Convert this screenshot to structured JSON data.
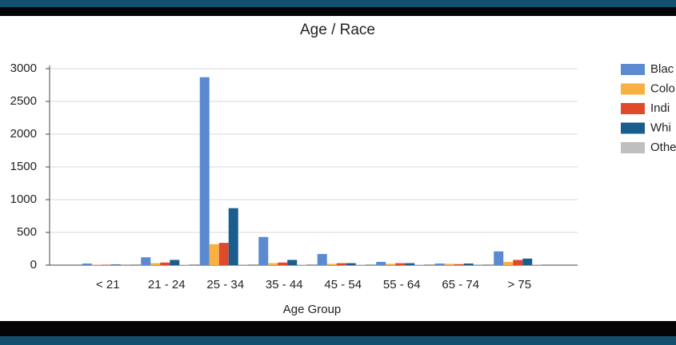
{
  "chart_data": {
    "type": "bar",
    "title": "Age / Race",
    "x_label": "Age Group",
    "categories": [
      "< 21",
      "21 - 24",
      "25 - 34",
      "35 - 44",
      "45 - 54",
      "55 - 64",
      "65 - 74",
      "> 75"
    ],
    "series": [
      {
        "name": "Blac",
        "color": "#5b8ad0",
        "values": [
          25,
          120,
          2870,
          430,
          170,
          50,
          25,
          210
        ]
      },
      {
        "name": "Colo",
        "color": "#f7b041",
        "values": [
          5,
          30,
          320,
          30,
          20,
          20,
          20,
          50
        ]
      },
      {
        "name": "Indi",
        "color": "#df4a2b",
        "values": [
          5,
          40,
          340,
          40,
          30,
          30,
          15,
          80
        ]
      },
      {
        "name": "Whi",
        "color": "#1b5d8c",
        "values": [
          10,
          80,
          870,
          80,
          30,
          30,
          25,
          100
        ]
      },
      {
        "name": "Othe",
        "color": "#bfbfbf",
        "values": [
          2,
          5,
          10,
          5,
          5,
          5,
          3,
          10
        ]
      }
    ],
    "ylim": [
      0,
      3000
    ],
    "yticks": [
      0,
      500,
      1000,
      1500,
      2000,
      2500,
      3000
    ],
    "grid": true
  }
}
